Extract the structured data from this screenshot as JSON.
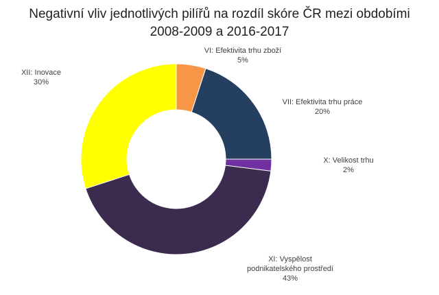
{
  "chart_data": {
    "type": "pie",
    "subtype": "donut",
    "title_lines": [
      "Negativní vliv jednotlivých pilířů na rozdíl skóre ČR mezi obdobími",
      "2008-2009 a 2016-2017"
    ],
    "slices": [
      {
        "label_lines": [
          "VI: Efektivita trhu zboží"
        ],
        "percent_label": "5%",
        "value": 5,
        "color": "#f79646"
      },
      {
        "label_lines": [
          "VII: Efektivita trhu práce"
        ],
        "percent_label": "20%",
        "value": 20,
        "color": "#243f60"
      },
      {
        "label_lines": [
          "X: Velikost trhu"
        ],
        "percent_label": "2%",
        "value": 2,
        "color": "#7030a0"
      },
      {
        "label_lines": [
          "XI: Vyspělost",
          "podnikatelského prostředí"
        ],
        "percent_label": "43%",
        "value": 43,
        "color": "#3b2b4f"
      },
      {
        "label_lines": [
          "XII: Inovace"
        ],
        "percent_label": "30%",
        "value": 30,
        "color": "#ffff00"
      }
    ],
    "legend": "none"
  }
}
